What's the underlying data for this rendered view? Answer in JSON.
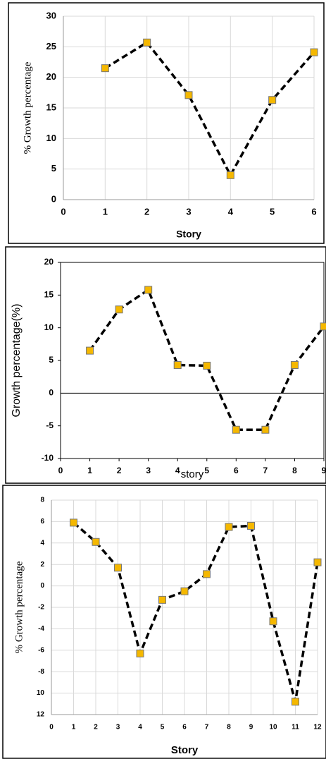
{
  "chart_data": [
    {
      "type": "line",
      "y_label": "% Growth percentage",
      "x_label": "Story",
      "x": [
        1,
        2,
        3,
        4,
        5,
        6
      ],
      "values": [
        21.5,
        25.7,
        17.1,
        4,
        16.3,
        24.1
      ],
      "marker_color": "#f5b800",
      "line_color": "#000000",
      "xlim": [
        0,
        6
      ],
      "xticks": [
        0,
        1,
        2,
        3,
        4,
        5,
        6
      ],
      "ylim": [
        0,
        30
      ],
      "yticks": [
        0,
        5,
        10,
        15,
        20,
        25,
        30
      ],
      "grid": true
    },
    {
      "type": "line",
      "y_label": "Growth percentage(%)",
      "x_label": "story",
      "x": [
        1,
        2,
        3,
        4,
        5,
        6,
        7,
        8,
        9
      ],
      "values": [
        6.5,
        12.8,
        15.8,
        4.3,
        4.2,
        -5.6,
        -5.6,
        4.3,
        10.2
      ],
      "marker_color": "#f5b800",
      "line_color": "#000000",
      "xlim": [
        0,
        9
      ],
      "xticks": [
        0,
        1,
        2,
        3,
        4,
        5,
        6,
        7,
        8,
        9
      ],
      "ylim": [
        -10,
        20
      ],
      "yticks": [
        -10,
        -5,
        0,
        5,
        10,
        15,
        20
      ],
      "grid": false
    },
    {
      "type": "line",
      "y_label": "% Growth percentage",
      "x_label": "Story",
      "x": [
        1,
        2,
        3,
        4,
        5,
        6,
        7,
        8,
        9,
        10,
        11,
        12
      ],
      "values": [
        5.9,
        4.1,
        1.7,
        -6.3,
        -1.3,
        -0.5,
        1.1,
        5.5,
        5.6,
        -3.3,
        -10.8,
        2.2
      ],
      "marker_color": "#f5b800",
      "line_color": "#000000",
      "xlim": [
        0,
        12
      ],
      "xticks": [
        0,
        1,
        2,
        3,
        4,
        5,
        6,
        7,
        8,
        9,
        10,
        11,
        12
      ],
      "ylim": [
        -12,
        8
      ],
      "yticks": [
        {
          "value": -12,
          "label": "12"
        },
        {
          "value": -10,
          "label": "10"
        },
        -8,
        -6,
        -4,
        -2,
        0,
        2,
        4,
        6,
        8
      ],
      "grid": true
    }
  ]
}
